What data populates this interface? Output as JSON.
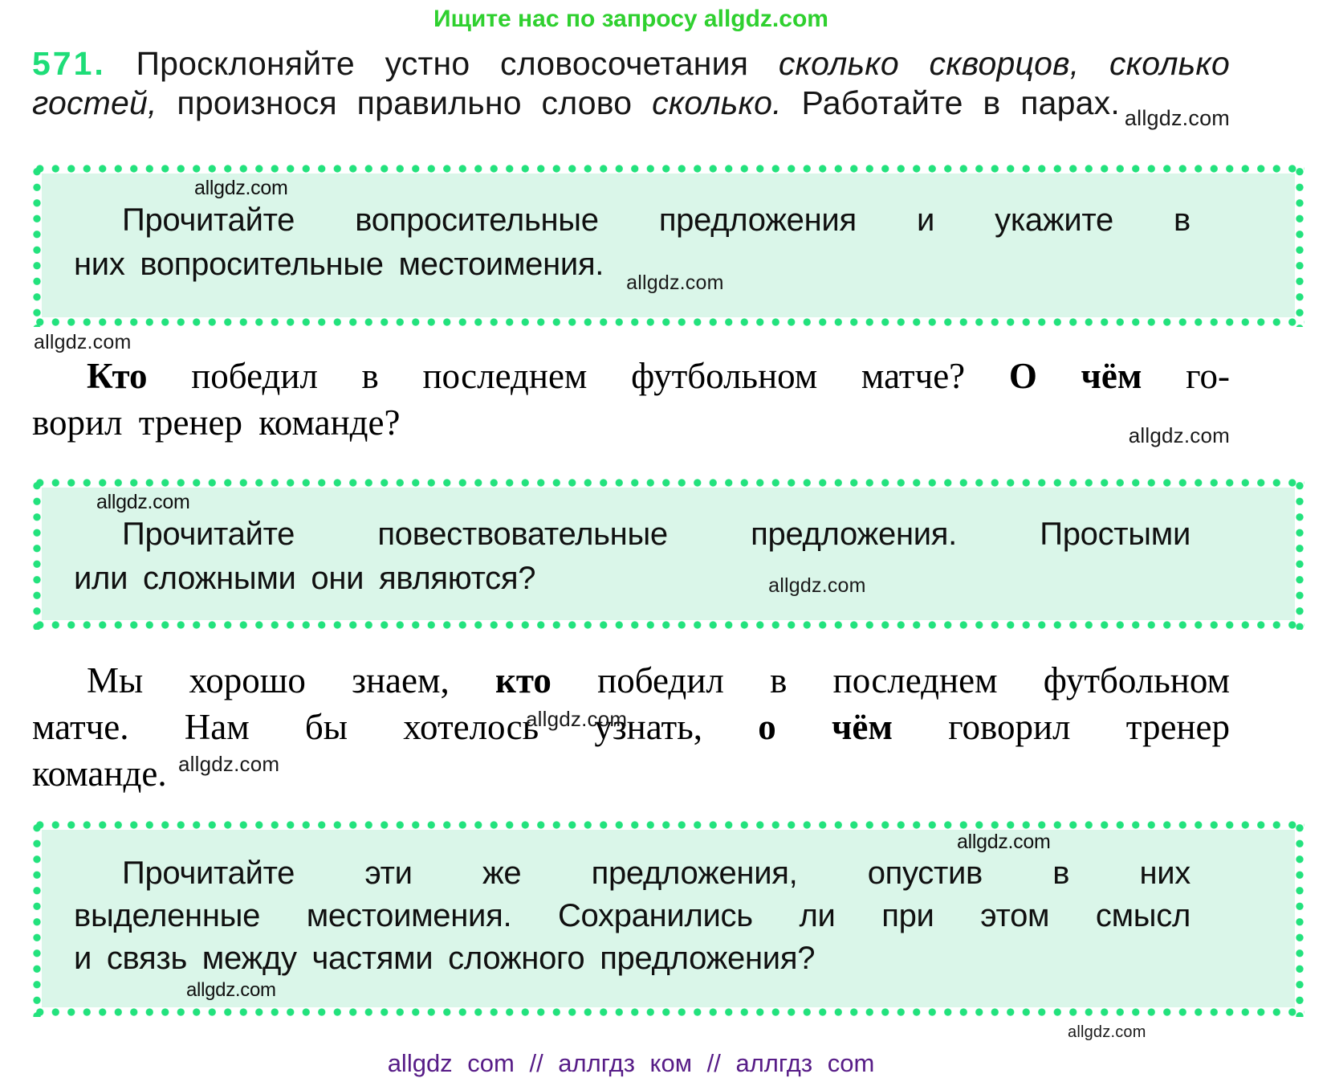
{
  "colors": {
    "dot_green": "#23e27d",
    "box_fill": "#daf6e9",
    "promo_green": "#2fd02f",
    "number_green": "#1edd78",
    "footer_purple": "#571c87",
    "text": "#111111"
  },
  "watermark": "allgdz.com",
  "watermark_small": "allgdz.com",
  "promo": {
    "text": "Ищите нас по запросу allgdz.com"
  },
  "exercise": {
    "number": "571.",
    "lines": [
      [
        {
          "t": " Просклоняйте устно словосочетания "
        },
        {
          "t": "сколько скворцов, сколько",
          "c": "i"
        }
      ],
      [
        {
          "t": "гостей,",
          "c": "i"
        },
        {
          "t": " произнося правильно слово "
        },
        {
          "t": "сколько.",
          "c": "i"
        },
        {
          "t": " Работайте в парах."
        },
        {
          "t": "allgdz.com",
          "c": "wm sub"
        }
      ]
    ]
  },
  "box1": {
    "wm_top": "allgdz.com",
    "lines": [
      [
        {
          "t": "Прочитайте вопросительные предложения и укажите в"
        }
      ],
      [
        {
          "t": "них вопросительные местоимения."
        },
        {
          "t": "allgdz.com",
          "c": "wm drop"
        }
      ]
    ]
  },
  "wm_below_box1": "allgdz.com",
  "para1": {
    "lines": [
      [
        {
          "t": "Кто",
          "c": "b"
        },
        {
          "t": " победил в последнем футбольном матче? "
        },
        {
          "t": "О чём",
          "c": "b"
        },
        {
          "t": " го-"
        }
      ],
      [
        {
          "t": "ворил тренер команде?"
        }
      ]
    ],
    "wm_right": "allgdz.com"
  },
  "box2": {
    "wm_top": "allgdz.com",
    "lines": [
      [
        {
          "t": "Прочитайте повествовательные предложения. Простыми"
        }
      ],
      [
        {
          "t": "или сложными они являются?"
        },
        {
          "t": "allgdz.com",
          "c": "wm push2"
        }
      ]
    ]
  },
  "para2": {
    "lines": [
      [
        {
          "t": "Мы хорошо знаем, "
        },
        {
          "t": "кто",
          "c": "b"
        },
        {
          "t": " победил в последнем футбольном"
        }
      ],
      [
        {
          "t": "матче. Нам бы хотелось узнать, "
        },
        {
          "t": "о чём",
          "c": "b"
        },
        {
          "t": " говорил тренер"
        }
      ],
      [
        {
          "t": "команде."
        }
      ]
    ],
    "wm_above_last": "allgdz.com",
    "wm_below_center": "allgdz.com"
  },
  "box3": {
    "wm_top": "allgdz.com",
    "lines": [
      [
        {
          "t": "Прочитайте эти же предложения, опустив в них"
        }
      ],
      [
        {
          "t": "выделенные местоимения. Сохранились ли при этом смысл"
        }
      ],
      [
        {
          "t": "и связь между частями сложного предложения?"
        }
      ]
    ],
    "wm_bottom": "allgdz.com"
  },
  "wm_below_box3": "allgdz.com",
  "footer": {
    "text": "allgdz com // аллгдз ком // аллгдз com"
  }
}
